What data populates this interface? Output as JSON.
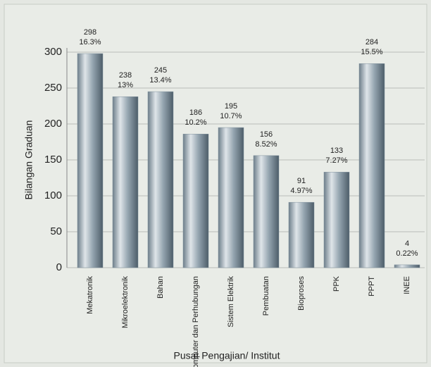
{
  "chart_data": {
    "type": "bar",
    "x_label": "Pusat Pengajian/ Institut",
    "y_label": "Bilangan Graduan",
    "categories": [
      "Mekatronik",
      "Mikroelektronik",
      "Bahan",
      "Komputer dan Perhubungan",
      "Sistem Elektrik",
      "Pembuatan",
      "Bioproses",
      "PPK",
      "PPPT",
      "INEE"
    ],
    "values": [
      298,
      238,
      245,
      186,
      195,
      156,
      91,
      133,
      284,
      4
    ],
    "percent_labels": [
      "16.3%",
      "13%",
      "13.4%",
      "10.2%",
      "10.7%",
      "8.52%",
      "4.97%",
      "7.27%",
      "15.5%",
      "0.22%"
    ],
    "color": "#7f909c",
    "ylim": [
      0,
      300
    ],
    "yticks": [
      0,
      50,
      100,
      150,
      200,
      250,
      300
    ],
    "grid": true
  }
}
